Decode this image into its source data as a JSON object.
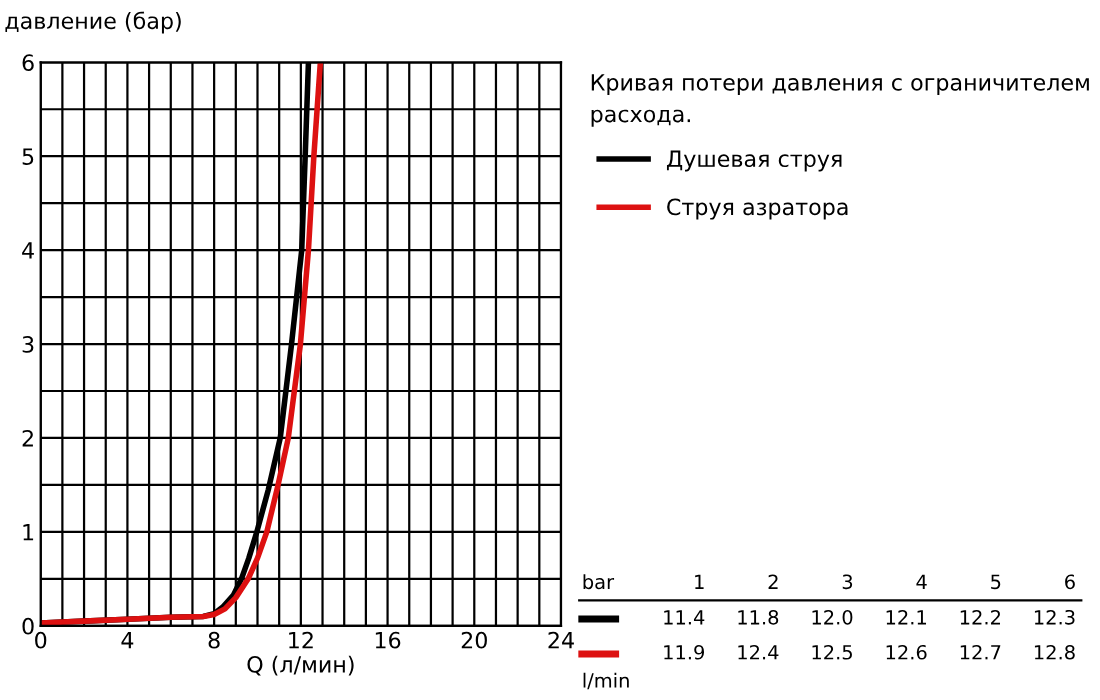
{
  "chart_data": {
    "type": "line",
    "title": "Кривая потери давления с ограничителем расхода.",
    "xlabel": "Q (л/мин)",
    "ylabel": "давление (бар)",
    "xlim": [
      0,
      24
    ],
    "ylim": [
      0,
      6
    ],
    "xticks": [
      0,
      4,
      8,
      12,
      16,
      20,
      24
    ],
    "yticks": [
      0,
      1,
      2,
      3,
      4,
      5,
      6
    ],
    "grid": true,
    "legend": "top right",
    "line_style": "solid",
    "series": [
      {
        "name": "Душевая струя",
        "color": "#000000",
        "x": [
          0,
          2,
          4,
          6,
          7.5,
          8,
          8.4,
          8.9,
          9.26,
          9.6,
          9.97,
          10.5,
          11.05,
          11.57,
          12.04,
          12.2,
          12.35
        ],
        "values": [
          0.03,
          0.05,
          0.07,
          0.09,
          0.1,
          0.13,
          0.2,
          0.33,
          0.5,
          0.72,
          1,
          1.45,
          2,
          3,
          4,
          5,
          6
        ]
      },
      {
        "name": "Струя азратора",
        "color": "#dd1111",
        "x": [
          0,
          2,
          4,
          6,
          7.5,
          8,
          8.5,
          9,
          9.57,
          10,
          10.43,
          10.95,
          11.42,
          11.98,
          12.35,
          12.6,
          12.9
        ],
        "values": [
          0.03,
          0.05,
          0.07,
          0.09,
          0.1,
          0.12,
          0.18,
          0.3,
          0.5,
          0.72,
          1,
          1.5,
          2,
          3,
          4,
          5,
          6
        ]
      }
    ],
    "annotations": [
      "bar",
      "1",
      "2",
      "3",
      "4",
      "5",
      "6",
      "11.4",
      "11.8",
      "12.0",
      "12.1",
      "12.2",
      "12.3",
      "11.9",
      "12.4",
      "12.5",
      "12.6",
      "12.7",
      "12.8",
      "l/min"
    ]
  }
}
